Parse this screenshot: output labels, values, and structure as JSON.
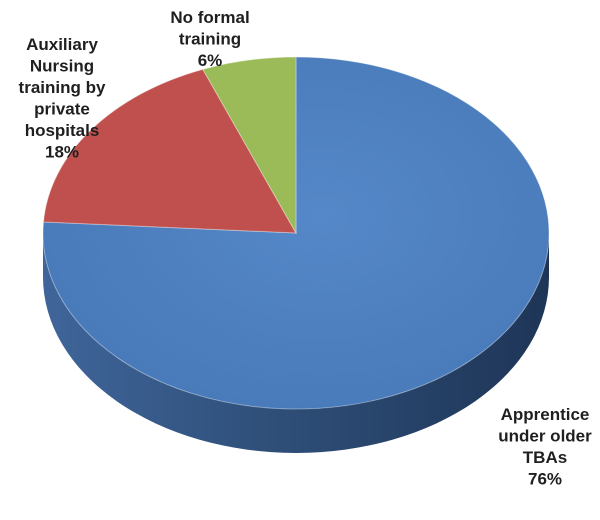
{
  "chart_data": {
    "type": "pie",
    "style": "3d",
    "title": "",
    "slices": [
      {
        "label": "Apprentice under older TBAs",
        "label_lines": [
          "Apprentice",
          "under older",
          "TBAs"
        ],
        "value": 76,
        "value_label": "76%",
        "color": "#4f81bd",
        "side_color": "#385d8a"
      },
      {
        "label": "Auxiliary Nursing training by private hospitals",
        "label_lines": [
          "Auxiliary",
          "Nursing",
          "training by",
          "private",
          "hospitals"
        ],
        "value": 18,
        "value_label": "18%",
        "color": "#c0504d",
        "side_color": "#8e3b39"
      },
      {
        "label": "No formal training",
        "label_lines": [
          "No formal",
          "training"
        ],
        "value": 6,
        "value_label": "6%",
        "color": "#9bbb59",
        "side_color": "#718a41"
      }
    ],
    "legend": "none",
    "labels": "outside, label with percentage"
  }
}
